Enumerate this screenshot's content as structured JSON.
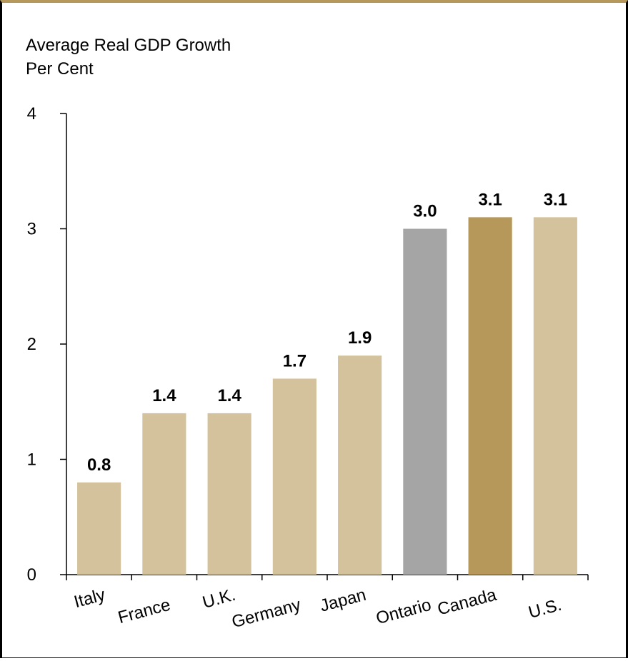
{
  "chart_data": {
    "type": "bar",
    "title": "Average Real GDP Growth",
    "ylabel": "Per Cent",
    "xlabel": "",
    "categories": [
      "Italy",
      "France",
      "U.K.",
      "Germany",
      "Japan",
      "Ontario",
      "Canada",
      "U.S."
    ],
    "values": [
      0.8,
      1.4,
      1.4,
      1.7,
      1.9,
      3.0,
      3.1,
      3.1
    ],
    "data_labels": [
      "0.8",
      "1.4",
      "1.4",
      "1.7",
      "1.9",
      "3.0",
      "3.1",
      "3.1"
    ],
    "yticks": [
      "0",
      "1",
      "2",
      "3",
      "4"
    ],
    "ylim": [
      0,
      4
    ],
    "grid": false,
    "legend": "none",
    "colors": {
      "default": "#d4c29c",
      "Ontario": "#a5a5a5",
      "Canada": "#b5985a",
      "frame_top": "#b5985a"
    }
  }
}
